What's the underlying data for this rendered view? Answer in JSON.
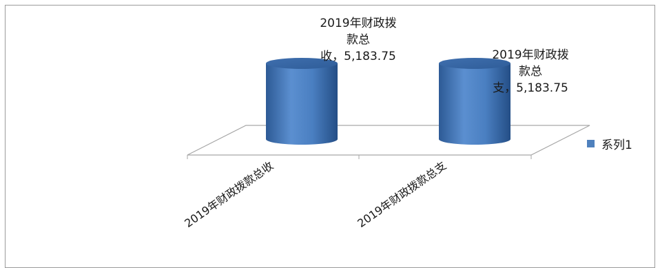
{
  "chart_data": {
    "type": "bar",
    "style": "3d-cylinder",
    "categories": [
      "2019年财政拨款总收",
      "2019年财政拨款总支"
    ],
    "series": [
      {
        "name": "系列1",
        "values": [
          5183.75,
          5183.75
        ],
        "color": "#4f81bd",
        "data_labels": [
          [
            "2019年财政拨",
            "款总",
            "收，5,183.75"
          ],
          [
            "2019年财政拨",
            "款总",
            "支，5,183.75"
          ]
        ]
      }
    ],
    "title": "",
    "xlabel": "",
    "ylabel": "",
    "legend": "right",
    "grid": false
  }
}
